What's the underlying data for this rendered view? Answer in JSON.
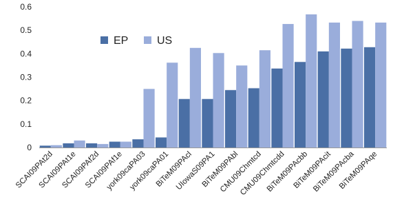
{
  "chart_data": {
    "type": "bar",
    "categories": [
      "SCAI09PAt2d",
      "SCAI09PAt1e",
      "SCAI09PAf2d",
      "SCAI09PAf1e",
      "york09caPA03",
      "york09caPA01",
      "BiTeM09PAcl",
      "UIowaS09PA1",
      "BiTeM09PAbl",
      "CMU09Chmtcd",
      "CMU09Chmtcdd",
      "BiTeM09PAcbb",
      "BiTeM09PAcit",
      "BiTeM09PAcba",
      "BiTeM09PAqe"
    ],
    "series": [
      {
        "name": "EP",
        "color": "#4a6fa5",
        "values": [
          0.008,
          0.018,
          0.018,
          0.025,
          0.035,
          0.043,
          0.207,
          0.207,
          0.245,
          0.253,
          0.337,
          0.365,
          0.41,
          0.422,
          0.428
        ]
      },
      {
        "name": "US",
        "color": "#9aaddb",
        "values": [
          0.01,
          0.03,
          0.015,
          0.025,
          0.25,
          0.362,
          0.425,
          0.403,
          0.35,
          0.415,
          0.527,
          0.568,
          0.533,
          0.54,
          0.533
        ]
      }
    ],
    "yticks": [
      "0",
      "0.1",
      "0.2",
      "0.3",
      "0.4",
      "0.5",
      "0.6"
    ],
    "ylim": [
      0,
      0.6
    ],
    "grid": false,
    "legend_position": "top-left"
  }
}
